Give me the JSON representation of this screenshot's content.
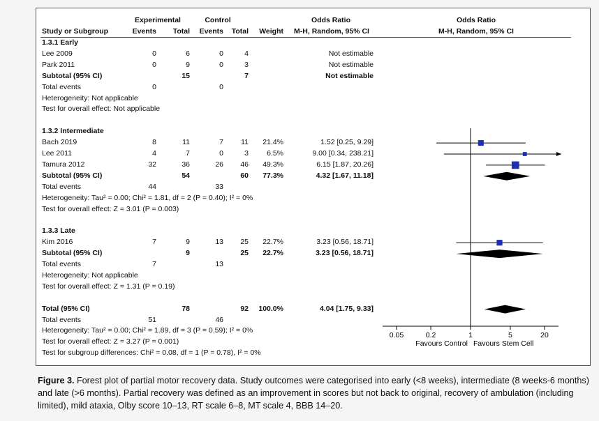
{
  "headers": {
    "experimental": "Experimental",
    "control": "Control",
    "odds_ratio_left": "Odds Ratio",
    "odds_ratio_right": "Odds Ratio",
    "study": "Study or Subgroup",
    "events1": "Events",
    "total1": "Total",
    "events2": "Events",
    "total2": "Total",
    "weight": "Weight",
    "method_left": "M-H, Random, 95% CI",
    "method_right": "M-H, Random, 95% CI"
  },
  "rows": [
    {
      "type": "group",
      "label": "1.3.1 Early"
    },
    {
      "type": "study",
      "label": "Lee 2009",
      "e1": "0",
      "t1": "6",
      "e2": "0",
      "t2": "4",
      "w": "",
      "ci": "Not estimable"
    },
    {
      "type": "study",
      "label": "Park 2011",
      "e1": "0",
      "t1": "9",
      "e2": "0",
      "t2": "3",
      "w": "",
      "ci": "Not estimable"
    },
    {
      "type": "subtotal",
      "label": "Subtotal (95% CI)",
      "e1": "",
      "t1": "15",
      "e2": "",
      "t2": "7",
      "w": "",
      "ci": "Not estimable"
    },
    {
      "type": "events",
      "label": "Total events",
      "e1": "0",
      "t1": "",
      "e2": "0",
      "t2": "",
      "w": "",
      "ci": ""
    },
    {
      "type": "note",
      "label": "Heterogeneity: Not applicable"
    },
    {
      "type": "note",
      "label": "Test for overall effect: Not applicable"
    },
    {
      "type": "gap"
    },
    {
      "type": "group",
      "label": "1.3.2 Intermediate"
    },
    {
      "type": "study",
      "label": "Bach 2019",
      "e1": "8",
      "t1": "11",
      "e2": "7",
      "t2": "11",
      "w": "21.4%",
      "ci": "1.52 [0.25, 9.29]"
    },
    {
      "type": "study",
      "label": "Lee 2011",
      "e1": "4",
      "t1": "7",
      "e2": "0",
      "t2": "3",
      "w": "6.5%",
      "ci": "9.00 [0.34, 238.21]"
    },
    {
      "type": "study",
      "label": "Tamura 2012",
      "e1": "32",
      "t1": "36",
      "e2": "26",
      "t2": "46",
      "w": "49.3%",
      "ci": "6.15 [1.87, 20.26]"
    },
    {
      "type": "subtotal",
      "label": "Subtotal (95% CI)",
      "e1": "",
      "t1": "54",
      "e2": "",
      "t2": "60",
      "w": "77.3%",
      "ci": "4.32 [1.67, 11.18]"
    },
    {
      "type": "events",
      "label": "Total events",
      "e1": "44",
      "t1": "",
      "e2": "33",
      "t2": "",
      "w": "",
      "ci": ""
    },
    {
      "type": "note",
      "label": "Heterogeneity: Tau² = 0.00; Chi² = 1.81, df = 2 (P = 0.40); I² = 0%"
    },
    {
      "type": "note",
      "label": "Test for overall effect: Z = 3.01 (P = 0.003)"
    },
    {
      "type": "gap"
    },
    {
      "type": "group",
      "label": "1.3.3 Late"
    },
    {
      "type": "study",
      "label": "Kim 2016",
      "e1": "7",
      "t1": "9",
      "e2": "13",
      "t2": "25",
      "w": "22.7%",
      "ci": "3.23 [0.56, 18.71]"
    },
    {
      "type": "subtotal",
      "label": "Subtotal (95% CI)",
      "e1": "",
      "t1": "9",
      "e2": "",
      "t2": "25",
      "w": "22.7%",
      "ci": "3.23 [0.56, 18.71]"
    },
    {
      "type": "events",
      "label": "Total events",
      "e1": "7",
      "t1": "",
      "e2": "13",
      "t2": "",
      "w": "",
      "ci": ""
    },
    {
      "type": "note",
      "label": "Heterogeneity: Not applicable"
    },
    {
      "type": "note",
      "label": "Test for overall effect: Z = 1.31 (P = 0.19)"
    },
    {
      "type": "gap"
    },
    {
      "type": "subtotal",
      "label": "Total (95% CI)",
      "e1": "",
      "t1": "78",
      "e2": "",
      "t2": "92",
      "w": "100.0%",
      "ci": "4.04 [1.75, 9.33]"
    },
    {
      "type": "events",
      "label": "Total events",
      "e1": "51",
      "t1": "",
      "e2": "46",
      "t2": "",
      "w": "",
      "ci": ""
    },
    {
      "type": "note",
      "label": "Heterogeneity: Tau² = 0.00; Chi² = 1.89, df = 3 (P = 0.59); I² = 0%"
    },
    {
      "type": "note",
      "label": "Test for overall effect: Z = 3.27 (P = 0.001)"
    },
    {
      "type": "note",
      "label": "Test for subgroup differences: Chi² = 0.08, df = 1 (P = 0.78), I² = 0%"
    }
  ],
  "chart_data": {
    "type": "forest",
    "scale": "log",
    "xlim": [
      0.05,
      20
    ],
    "ticks": [
      0.05,
      0.2,
      1,
      5,
      20
    ],
    "tick_labels": [
      "0.05",
      "0.2",
      "1",
      "5",
      "20"
    ],
    "left_label": "Favours Control",
    "right_label": "Favours Stem Cell",
    "studies": [
      {
        "name": "Bach 2019",
        "or": 1.52,
        "lo": 0.25,
        "hi": 9.29,
        "weight": 21.4
      },
      {
        "name": "Lee 2011",
        "or": 9.0,
        "lo": 0.34,
        "hi": 238.21,
        "weight": 6.5
      },
      {
        "name": "Tamura 2012",
        "or": 6.15,
        "lo": 1.87,
        "hi": 20.26,
        "weight": 49.3
      },
      {
        "name": "Kim 2016",
        "or": 3.23,
        "lo": 0.56,
        "hi": 18.71,
        "weight": 22.7
      }
    ],
    "diamonds": [
      {
        "name": "Subtotal Intermediate",
        "or": 4.32,
        "lo": 1.67,
        "hi": 11.18
      },
      {
        "name": "Subtotal Late",
        "or": 3.23,
        "lo": 0.56,
        "hi": 18.71
      },
      {
        "name": "Total",
        "or": 4.04,
        "lo": 1.75,
        "hi": 9.33
      }
    ],
    "colors": {
      "marker": "#1f2fb5",
      "diamond": "#000000",
      "line": "#000000"
    }
  },
  "caption": {
    "label": "Figure 3.",
    "text": "Forest plot of partial motor recovery data. Study outcomes were categorised into early (<8 weeks), intermediate (8 weeks-6 months) and late (>6 months). Partial recovery was defined as an improvement in scores but not back to original, recovery of ambulation (including limited), mild ataxia, Olby score 10–13, RT scale 6–8, MT scale 4, BBB 14–20."
  }
}
